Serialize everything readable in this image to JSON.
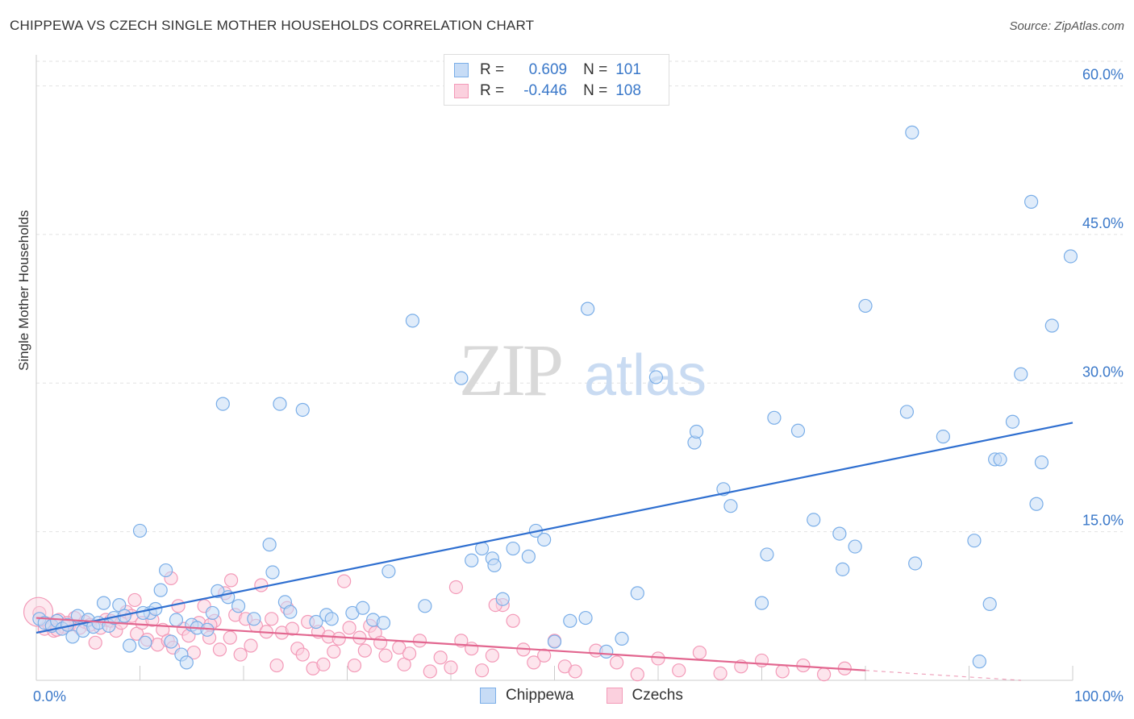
{
  "title": "CHIPPEWA VS CZECH SINGLE MOTHER HOUSEHOLDS CORRELATION CHART",
  "source": "Source: ZipAtlas.com",
  "legend": {
    "r_label": "R =",
    "n_label": "N =",
    "rows": [
      {
        "r": "0.609",
        "n": "101"
      },
      {
        "r": "-0.446",
        "n": "108"
      }
    ]
  },
  "chart_data": {
    "type": "scatter",
    "xlabel": "",
    "ylabel": "Single Mother Households",
    "xlim": [
      0,
      100
    ],
    "ylim": [
      0,
      62
    ],
    "x_tick_labels": [
      "0.0%",
      "100.0%"
    ],
    "y_ticks": [
      15,
      30,
      45,
      60
    ],
    "y_tick_labels": [
      "15.0%",
      "30.0%",
      "45.0%",
      "60.0%"
    ],
    "grid": true,
    "legend_position": "top-center",
    "watermark": "ZIPatlas",
    "series": [
      {
        "name": "Chippewa",
        "color": "#7aaee8",
        "line_color": "#2f6fd0",
        "trend": {
          "x0": 0,
          "y0": 4.8,
          "x1": 100,
          "y1": 26.0
        },
        "points": [
          [
            0.3,
            6.2
          ],
          [
            0.8,
            5.8
          ],
          [
            1.5,
            5.5
          ],
          [
            2.0,
            6.0
          ],
          [
            2.5,
            5.2
          ],
          [
            3.0,
            5.6
          ],
          [
            3.5,
            4.4
          ],
          [
            4.0,
            6.5
          ],
          [
            4.5,
            5.0
          ],
          [
            5.0,
            6.1
          ],
          [
            5.5,
            5.4
          ],
          [
            6.0,
            5.8
          ],
          [
            6.5,
            7.8
          ],
          [
            7.0,
            5.5
          ],
          [
            7.5,
            6.3
          ],
          [
            8.0,
            7.6
          ],
          [
            8.5,
            6.5
          ],
          [
            9.0,
            3.5
          ],
          [
            10.0,
            15.1
          ],
          [
            10.5,
            3.8
          ],
          [
            11.0,
            6.8
          ],
          [
            11.5,
            7.2
          ],
          [
            12.0,
            9.1
          ],
          [
            12.5,
            11.1
          ],
          [
            13.0,
            3.9
          ],
          [
            13.5,
            6.1
          ],
          [
            14.0,
            2.6
          ],
          [
            14.5,
            1.8
          ],
          [
            15.0,
            5.6
          ],
          [
            15.5,
            5.3
          ],
          [
            16.5,
            5.1
          ],
          [
            17.0,
            6.8
          ],
          [
            17.5,
            9.0
          ],
          [
            18.0,
            27.9
          ],
          [
            18.5,
            8.4
          ],
          [
            19.5,
            7.5
          ],
          [
            21.0,
            6.2
          ],
          [
            22.5,
            13.7
          ],
          [
            22.8,
            10.9
          ],
          [
            23.5,
            27.9
          ],
          [
            24.0,
            7.9
          ],
          [
            24.5,
            6.9
          ],
          [
            25.7,
            27.3
          ],
          [
            27.0,
            5.9
          ],
          [
            28.0,
            6.6
          ],
          [
            28.5,
            6.2
          ],
          [
            30.5,
            6.8
          ],
          [
            31.5,
            7.3
          ],
          [
            32.5,
            6.1
          ],
          [
            33.5,
            5.8
          ],
          [
            34.0,
            11.0
          ],
          [
            36.3,
            36.3
          ],
          [
            37.5,
            7.5
          ],
          [
            41.0,
            30.5
          ],
          [
            42.0,
            12.1
          ],
          [
            43.0,
            13.3
          ],
          [
            44.0,
            12.3
          ],
          [
            44.2,
            11.6
          ],
          [
            45.0,
            8.2
          ],
          [
            46.0,
            13.3
          ],
          [
            47.5,
            12.5
          ],
          [
            48.2,
            15.1
          ],
          [
            49.0,
            14.2
          ],
          [
            50.0,
            3.9
          ],
          [
            51.5,
            6.0
          ],
          [
            53.0,
            6.3
          ],
          [
            53.2,
            37.5
          ],
          [
            55.0,
            2.9
          ],
          [
            56.5,
            4.2
          ],
          [
            58.0,
            8.8
          ],
          [
            59.8,
            30.6
          ],
          [
            63.5,
            24.0
          ],
          [
            63.7,
            25.1
          ],
          [
            66.3,
            19.3
          ],
          [
            67.0,
            17.6
          ],
          [
            70.0,
            7.8
          ],
          [
            70.5,
            12.7
          ],
          [
            71.2,
            26.5
          ],
          [
            73.5,
            25.2
          ],
          [
            75.0,
            16.2
          ],
          [
            77.5,
            14.8
          ],
          [
            77.8,
            11.2
          ],
          [
            79.0,
            13.5
          ],
          [
            80.0,
            37.8
          ],
          [
            84.0,
            27.1
          ],
          [
            84.5,
            55.3
          ],
          [
            84.8,
            11.8
          ],
          [
            87.5,
            24.6
          ],
          [
            90.5,
            14.1
          ],
          [
            91.0,
            1.9
          ],
          [
            92.0,
            7.7
          ],
          [
            92.5,
            22.3
          ],
          [
            93.0,
            22.3
          ],
          [
            94.2,
            26.1
          ],
          [
            95.0,
            30.9
          ],
          [
            96.0,
            48.3
          ],
          [
            96.5,
            17.8
          ],
          [
            97.0,
            22.0
          ],
          [
            98.0,
            35.8
          ],
          [
            99.8,
            42.8
          ],
          [
            10.3,
            6.8
          ]
        ]
      },
      {
        "name": "Czechs",
        "color": "#f39ab8",
        "line_color": "#e2668f",
        "trend": {
          "x0": 0,
          "y0": 6.3,
          "x1": 80,
          "y1": 1.0,
          "dash_to": {
            "x": 95,
            "y": 0.0
          }
        },
        "points": [
          [
            0.3,
            6.8
          ],
          [
            0.8,
            5.2
          ],
          [
            1.2,
            5.7
          ],
          [
            1.7,
            5.0
          ],
          [
            2.2,
            6.1
          ],
          [
            2.7,
            5.4
          ],
          [
            3.2,
            5.6
          ],
          [
            3.7,
            6.3
          ],
          [
            4.2,
            5.3
          ],
          [
            4.7,
            5.9
          ],
          [
            5.2,
            5.6
          ],
          [
            5.7,
            3.8
          ],
          [
            6.2,
            5.3
          ],
          [
            6.7,
            6.1
          ],
          [
            7.2,
            6.0
          ],
          [
            7.7,
            5.0
          ],
          [
            8.2,
            5.8
          ],
          [
            8.7,
            6.9
          ],
          [
            9.2,
            6.5
          ],
          [
            9.7,
            4.7
          ],
          [
            10.2,
            5.8
          ],
          [
            10.7,
            4.1
          ],
          [
            11.2,
            6.1
          ],
          [
            11.7,
            3.6
          ],
          [
            12.2,
            5.1
          ],
          [
            12.7,
            4.0
          ],
          [
            13.2,
            3.3
          ],
          [
            13.7,
            7.5
          ],
          [
            14.2,
            5.2
          ],
          [
            14.7,
            4.5
          ],
          [
            15.2,
            2.8
          ],
          [
            15.7,
            5.8
          ],
          [
            16.2,
            7.5
          ],
          [
            16.7,
            4.3
          ],
          [
            17.2,
            6.0
          ],
          [
            17.7,
            3.1
          ],
          [
            18.2,
            8.8
          ],
          [
            18.7,
            4.3
          ],
          [
            19.2,
            6.6
          ],
          [
            19.7,
            2.6
          ],
          [
            20.2,
            6.2
          ],
          [
            20.7,
            3.5
          ],
          [
            21.2,
            5.5
          ],
          [
            21.7,
            9.6
          ],
          [
            22.2,
            4.9
          ],
          [
            22.7,
            6.2
          ],
          [
            23.2,
            1.5
          ],
          [
            23.7,
            4.8
          ],
          [
            24.2,
            7.3
          ],
          [
            24.7,
            5.2
          ],
          [
            25.2,
            3.2
          ],
          [
            25.7,
            2.6
          ],
          [
            26.2,
            5.9
          ],
          [
            26.7,
            1.2
          ],
          [
            27.2,
            4.9
          ],
          [
            27.7,
            1.6
          ],
          [
            28.2,
            4.4
          ],
          [
            28.7,
            2.9
          ],
          [
            29.2,
            4.2
          ],
          [
            29.7,
            10.0
          ],
          [
            30.2,
            5.3
          ],
          [
            30.7,
            1.5
          ],
          [
            31.2,
            4.3
          ],
          [
            31.7,
            3.0
          ],
          [
            32.2,
            5.5
          ],
          [
            32.7,
            4.8
          ],
          [
            33.2,
            3.8
          ],
          [
            33.7,
            2.5
          ],
          [
            35.0,
            3.3
          ],
          [
            35.5,
            1.6
          ],
          [
            36.0,
            2.7
          ],
          [
            37.0,
            4.0
          ],
          [
            38.0,
            0.9
          ],
          [
            39.0,
            2.3
          ],
          [
            40.0,
            1.3
          ],
          [
            41.0,
            4.0
          ],
          [
            42.0,
            3.2
          ],
          [
            43.0,
            1.0
          ],
          [
            44.0,
            2.5
          ],
          [
            45.0,
            7.6
          ],
          [
            46.0,
            6.0
          ],
          [
            47.0,
            3.1
          ],
          [
            48.0,
            1.8
          ],
          [
            49.0,
            2.5
          ],
          [
            50.0,
            4.0
          ],
          [
            51.0,
            1.4
          ],
          [
            52.0,
            0.9
          ],
          [
            54.0,
            3.0
          ],
          [
            56.0,
            1.8
          ],
          [
            58.0,
            0.6
          ],
          [
            60.0,
            2.2
          ],
          [
            62.0,
            1.0
          ],
          [
            64.0,
            2.8
          ],
          [
            66.0,
            0.7
          ],
          [
            68.0,
            1.4
          ],
          [
            70.0,
            2.0
          ],
          [
            72.0,
            0.9
          ],
          [
            74.0,
            1.5
          ],
          [
            76.0,
            0.6
          ],
          [
            78.0,
            1.2
          ],
          [
            2.0,
            5.1
          ],
          [
            3.0,
            5.8
          ],
          [
            13.0,
            10.3
          ],
          [
            18.8,
            10.1
          ],
          [
            40.5,
            9.4
          ],
          [
            44.3,
            7.6
          ],
          [
            9.5,
            8.1
          ],
          [
            16.8,
            5.6
          ]
        ]
      }
    ]
  }
}
